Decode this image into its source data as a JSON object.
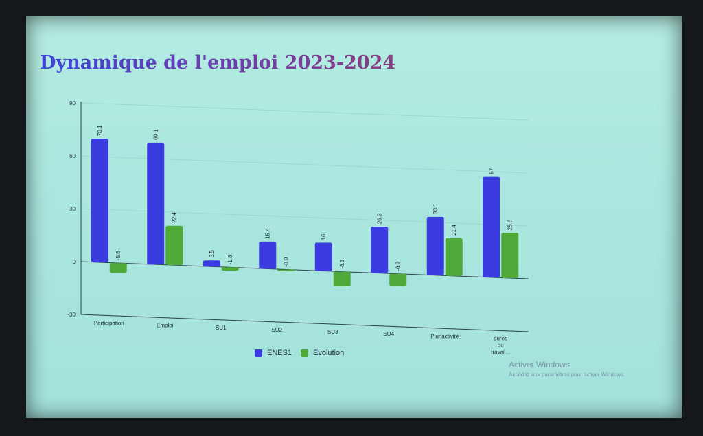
{
  "slide": {
    "title": "Dynamique de l'emploi 2023-2024"
  },
  "watermark": {
    "title": "Activer Windows",
    "subtitle": "Accédez aux paramètres pour activer Windows."
  },
  "colors": {
    "enes1": "#3a3ce0",
    "evolution": "#4faa3a",
    "axis": "#2c3e50",
    "grid": "#97d4cf"
  },
  "chart_data": {
    "type": "bar",
    "title": "",
    "xlabel": "",
    "ylabel": "",
    "ylim": [
      -30,
      90
    ],
    "yticks": [
      -30,
      0,
      30,
      60,
      90
    ],
    "grid": true,
    "legend_position": "bottom",
    "categories": [
      "Participation",
      "Emploi",
      "SU1",
      "SU2",
      "SU3",
      "SU4",
      "Pluriactivité",
      "durée du travail..."
    ],
    "series": [
      {
        "name": "ENES1",
        "values": [
          70.1,
          69.1,
          3.5,
          15.4,
          16,
          26.3,
          33.1,
          57
        ],
        "labels": [
          "70.1",
          "69.1",
          "3.5",
          "15.4",
          "16",
          "26.3",
          "33.1",
          "57"
        ]
      },
      {
        "name": "Evolution",
        "values": [
          -5.6,
          22.4,
          -1.8,
          -0.9,
          -8.3,
          -6.9,
          21.4,
          25.6
        ],
        "labels": [
          "-5.6",
          "22.4",
          "-1.8",
          "-0.9",
          "-8.3",
          "-6.9",
          "21.4",
          "25.6"
        ]
      }
    ]
  }
}
